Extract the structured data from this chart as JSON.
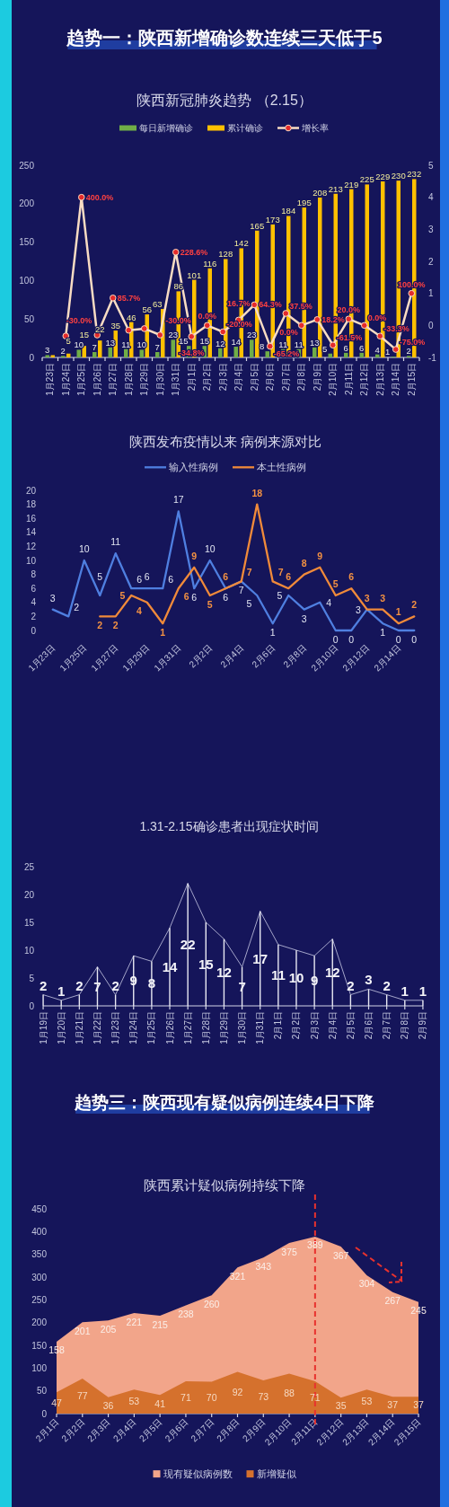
{
  "chart_data": [
    {
      "type": "bar",
      "title": "趋势一：陕西新增确诊数连续三天低于5",
      "subtitle": "陕西新冠肺炎趋势 （2.15）",
      "categories": [
        "1月23日",
        "1月24日",
        "1月25日",
        "1月26日",
        "1月27日",
        "1月28日",
        "1月29日",
        "1月30日",
        "1月31日",
        "2月1日",
        "2月2日",
        "2月3日",
        "2月4日",
        "2月5日",
        "2月6日",
        "2月7日",
        "2月8日",
        "2月9日",
        "2月10日",
        "2月11日",
        "2月12日",
        "2月13日",
        "2月14日",
        "2月15日"
      ],
      "series": [
        {
          "name": "每日新增确诊",
          "color": "#70ad47",
          "values": [
            3,
            2,
            10,
            7,
            13,
            11,
            10,
            7,
            23,
            15,
            15,
            12,
            14,
            23,
            8,
            11,
            11,
            13,
            5,
            6,
            6,
            4,
            1,
            2
          ],
          "value_labels": [
            "3",
            "2",
            "10",
            "7",
            "13",
            "11",
            "10",
            "7",
            "23",
            "15",
            "15",
            "12",
            "14",
            "23",
            "8",
            "11",
            "11",
            "13",
            "5",
            "6",
            "6",
            "4",
            "1",
            "2"
          ]
        },
        {
          "name": "累计确诊",
          "color": "#ffc000",
          "values": [
            3,
            5,
            15,
            22,
            35,
            46,
            56,
            63,
            86,
            101,
            116,
            128,
            142,
            165,
            173,
            184,
            195,
            208,
            213,
            219,
            225,
            229,
            230,
            232
          ],
          "value_labels": [
            null,
            "5",
            "15",
            "22",
            "35",
            "46",
            "56",
            "63",
            "86",
            "101",
            "116",
            "128",
            "142",
            "165",
            "173",
            "184",
            "195",
            "208",
            "213",
            "219",
            "225",
            "229",
            "230",
            "232"
          ]
        },
        {
          "name": "增长率",
          "type": "line",
          "axis": "y2",
          "color": "#f8dcc3",
          "values": [
            null,
            -0.33,
            4.0,
            -0.3,
            0.857,
            -0.15,
            -0.1,
            -0.3,
            2.286,
            -0.348,
            0,
            -0.2,
            0.167,
            0.643,
            -0.652,
            0.375,
            0,
            0.182,
            -0.615,
            0.2,
            0,
            -0.333,
            -0.75,
            1.0
          ],
          "value_labels": [
            null,
            null,
            "400.0%",
            "-30.0%",
            "85.7%",
            null,
            null,
            "-30.0%",
            "228.6%",
            "-34.8%",
            "0.0%",
            "-20.0%",
            "16.7%",
            "64.3%",
            "-65.2%",
            "37.5%",
            "0.0%",
            "18.2%",
            "-61.5%",
            "20.0%",
            "0.0%",
            "-33.3%",
            "-75.0%",
            "100.0%"
          ]
        }
      ],
      "ylim": [
        0,
        250
      ],
      "yticks": [
        0,
        50,
        100,
        150,
        200,
        250
      ],
      "y2lim": [
        -1,
        5
      ],
      "y2ticks": [
        -1,
        0,
        1,
        2,
        3,
        4,
        5
      ],
      "marker": "circle",
      "legend": "top"
    },
    {
      "type": "line",
      "title": "陕西发布疫情以来 病例来源对比",
      "categories": [
        "1月23日",
        null,
        "1月25日",
        null,
        "1月27日",
        null,
        "1月29日",
        null,
        "1月31日",
        null,
        "2月2日",
        null,
        "2月4日",
        null,
        "2月6日",
        null,
        "2月8日",
        null,
        "2月10日",
        null,
        "2月12日",
        null,
        "2月14日",
        null
      ],
      "series": [
        {
          "name": "输入性病例",
          "color": "#4f7fe0",
          "values": [
            3,
            2,
            10,
            5,
            11,
            6,
            6,
            6,
            17,
            6,
            10,
            6,
            7,
            5,
            1,
            5,
            3,
            4,
            0,
            0,
            3,
            1,
            0,
            0
          ]
        },
        {
          "name": "本土性病例",
          "color": "#f08a3a",
          "values": [
            null,
            null,
            null,
            2,
            2,
            5,
            4,
            1,
            6,
            9,
            5,
            6,
            7,
            18,
            7,
            6,
            8,
            9,
            5,
            6,
            3,
            3,
            1,
            2
          ]
        }
      ],
      "ylim": [
        0,
        20
      ],
      "yticks": [
        0,
        2,
        4,
        6,
        8,
        10,
        12,
        14,
        16,
        18,
        20
      ],
      "data_labels": true,
      "legend": "top"
    },
    {
      "type": "line",
      "title": "1.31-2.15确诊患者出现症状时间",
      "categories": [
        "1月19日",
        "1月20日",
        "1月21日",
        "1月22日",
        "1月23日",
        "1月24日",
        "1月25日",
        "1月26日",
        "1月27日",
        "1月28日",
        "1月29日",
        "1月30日",
        "1月31日",
        "2月1日",
        "2月2日",
        "2月3日",
        "2月4日",
        "2月5日",
        "2月6日",
        "2月7日",
        "2月8日",
        "2月9日"
      ],
      "series": [
        {
          "color": "#b4b6d6",
          "values": [
            2,
            1,
            2,
            7,
            2,
            9,
            8,
            14,
            22,
            15,
            12,
            7,
            17,
            11,
            10,
            9,
            12,
            2,
            3,
            2,
            1,
            1
          ]
        },
        {
          "type": "bar",
          "color": "#e8e8f2",
          "values": [
            2,
            1,
            2,
            7,
            2,
            9,
            8,
            14,
            22,
            15,
            12,
            7,
            17,
            11,
            10,
            9,
            12,
            2,
            3,
            2,
            1,
            1
          ],
          "value_labels": [
            "2",
            "1",
            "2",
            "7",
            "2",
            "9",
            "8",
            "14",
            "22",
            "15",
            "12",
            "7",
            "17",
            "11",
            "10",
            "9",
            "12",
            "2",
            "3",
            "2",
            "1",
            "1"
          ]
        }
      ],
      "ylim": [
        0,
        25
      ],
      "yticks": [
        0,
        5,
        10,
        15,
        20,
        25
      ]
    },
    {
      "type": "area",
      "title": "趋势三：陕西现有疑似病例连续4日下降",
      "subtitle": "陕西累计疑似病例持续下降",
      "categories": [
        "2月1日",
        "2月2日",
        "2月3日",
        "2月4日",
        "2月5日",
        "2月6日",
        "2月7日",
        "2月8日",
        "2月9日",
        "2月10日",
        "2月11日",
        "2月12日",
        "2月13日",
        "2月14日",
        "2月15日"
      ],
      "series": [
        {
          "name": "现有疑似病例数",
          "color": "#f2a58a",
          "values": [
            158,
            201,
            205,
            221,
            215,
            238,
            260,
            321,
            343,
            375,
            389,
            367,
            304,
            267,
            245
          ]
        },
        {
          "name": "新增疑似",
          "color": "#d5712d",
          "values": [
            47,
            77,
            36,
            53,
            41,
            71,
            70,
            92,
            73,
            88,
            71,
            35,
            53,
            37,
            37
          ]
        }
      ],
      "ylim": [
        0,
        450
      ],
      "yticks": [
        0,
        50,
        100,
        150,
        200,
        250,
        300,
        350,
        400,
        450
      ],
      "data_labels": true,
      "legend": "bottom",
      "ref_lines": [
        {
          "axis": "x",
          "value": "2月11日",
          "color": "#e8322e",
          "line_style": "dashed"
        }
      ]
    }
  ]
}
